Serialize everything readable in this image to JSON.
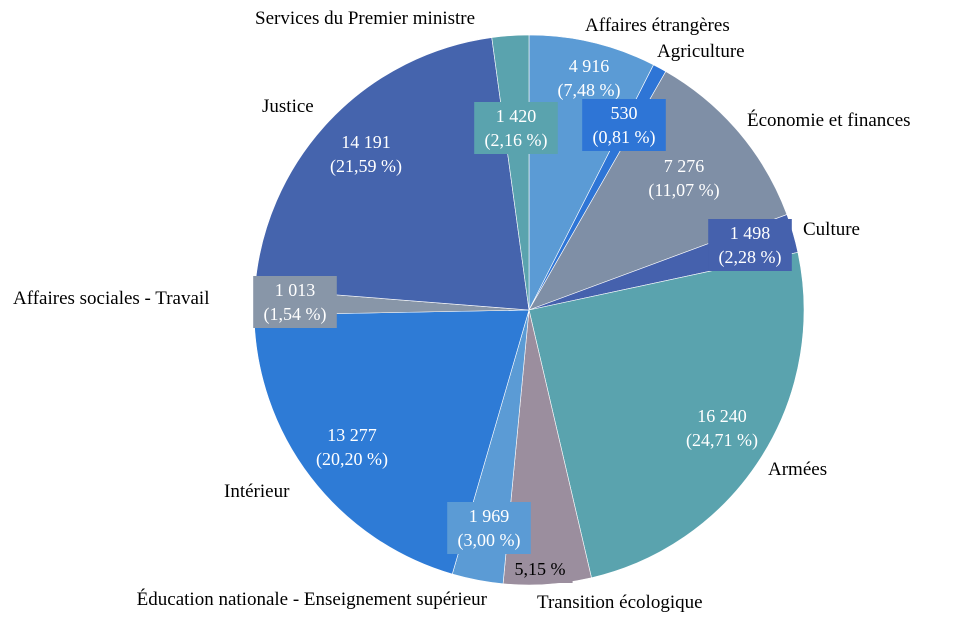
{
  "chart_data": {
    "type": "pie",
    "start_angle_deg": 0,
    "direction": "clockwise",
    "legend": "none",
    "slices": [
      {
        "name": "Affaires étrangères",
        "value": 4916,
        "value_label": "4 916",
        "pct_label": "(7,48 %)",
        "color": "#5b9bd5"
      },
      {
        "name": "Agriculture",
        "value": 530,
        "value_label": "530",
        "pct_label": "(0,81 %)",
        "color": "#2e75d6"
      },
      {
        "name": "Économie et finances",
        "value": 7276,
        "value_label": "7 276",
        "pct_label": "(11,07 %)",
        "color": "#7f8fa6"
      },
      {
        "name": "Culture",
        "value": 1498,
        "value_label": "1 498",
        "pct_label": "(2,28 %)",
        "color": "#4561ad"
      },
      {
        "name": "Armées",
        "value": 16240,
        "value_label": "16 240",
        "pct_label": "(24,71 %)",
        "color": "#5aa3ae"
      },
      {
        "name": "Transition écologique",
        "value": 3385,
        "value_label": "",
        "pct_label": "5,15 %",
        "color": "#9b8e9e"
      },
      {
        "name": "Éducation nationale - Enseignement supérieur",
        "value": 1969,
        "value_label": "1 969",
        "pct_label": "(3,00 %)",
        "color": "#5b9bd5"
      },
      {
        "name": "Intérieur",
        "value": 13277,
        "value_label": "13 277",
        "pct_label": "(20,20 %)",
        "color": "#2e7bd6"
      },
      {
        "name": "Affaires sociales - Travail",
        "value": 1013,
        "value_label": "1 013",
        "pct_label": "(1,54 %)",
        "color": "#8896a8"
      },
      {
        "name": "Justice",
        "value": 14191,
        "value_label": "14 191",
        "pct_label": "(21,59 %)",
        "color": "#4564ad"
      },
      {
        "name": "Services du Premier ministre",
        "value": 1420,
        "value_label": "1 420",
        "pct_label": "(2,16 %)",
        "color": "#5aa3ae"
      }
    ]
  }
}
